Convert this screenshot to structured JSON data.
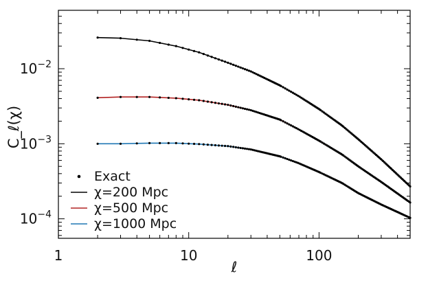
{
  "chart_data": {
    "type": "line",
    "xscale": "log",
    "yscale": "log",
    "xlim": [
      1,
      500
    ],
    "ylim": [
      5.5e-05,
      0.06
    ],
    "xlabel": "ℓ",
    "ylabel": "C_ℓ(χ)",
    "xticks": [
      {
        "value": 1,
        "label": "1"
      },
      {
        "value": 10,
        "label": "10"
      },
      {
        "value": 100,
        "label": "100"
      }
    ],
    "yticks": [
      {
        "value": 0.01,
        "base": "10",
        "exp": "−2"
      },
      {
        "value": 0.001,
        "base": "10",
        "exp": "−3"
      },
      {
        "value": 0.0001,
        "base": "10",
        "exp": "−4"
      }
    ],
    "grid": false,
    "legend_position": "bottom-left",
    "legend": {
      "exact_label": "Exact"
    },
    "series": [
      {
        "name": "χ=200 Mpc",
        "color": "#000000",
        "x": [
          2,
          3,
          5,
          8,
          12,
          20,
          30,
          50,
          70,
          100,
          150,
          200,
          300,
          500
        ],
        "y": [
          0.026,
          0.0255,
          0.0235,
          0.02,
          0.0165,
          0.012,
          0.0092,
          0.006,
          0.0043,
          0.0029,
          0.00175,
          0.00115,
          0.00062,
          0.00027
        ]
      },
      {
        "name": "χ=500 Mpc",
        "color": "#b22222",
        "x": [
          2,
          3,
          5,
          8,
          12,
          20,
          30,
          50,
          70,
          100,
          150,
          200,
          300,
          500
        ],
        "y": [
          0.0041,
          0.0042,
          0.0042,
          0.00405,
          0.0038,
          0.0033,
          0.0028,
          0.0021,
          0.00155,
          0.0011,
          0.00072,
          0.0005,
          0.00031,
          0.000165
        ]
      },
      {
        "name": "χ=1000 Mpc",
        "color": "#1f77b4",
        "x": [
          2,
          3,
          5,
          8,
          12,
          20,
          30,
          50,
          70,
          100,
          150,
          200,
          300,
          500
        ],
        "y": [
          0.001,
          0.001,
          0.00102,
          0.00102,
          0.00099,
          0.00093,
          0.00084,
          0.00068,
          0.00055,
          0.00042,
          0.0003,
          0.00022,
          0.000155,
          0.000103
        ]
      }
    ]
  }
}
